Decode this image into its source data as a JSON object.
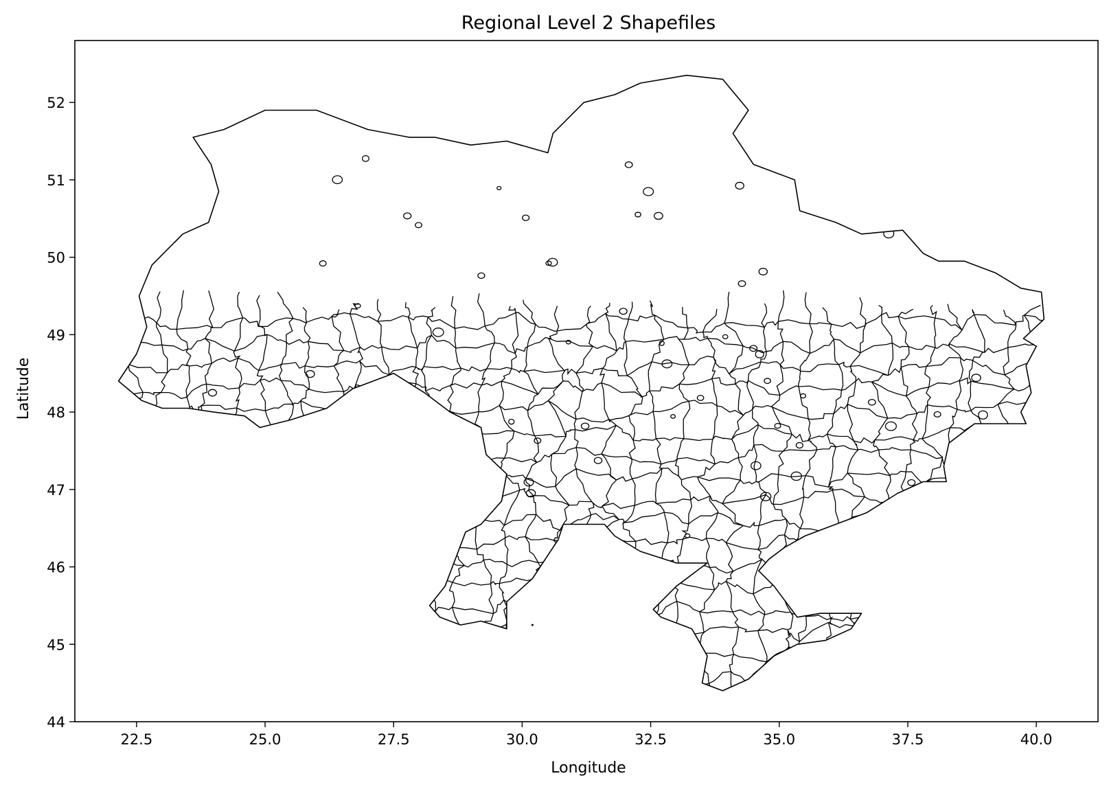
{
  "chart_data": {
    "type": "map",
    "title": "Regional Level 2 Shapefiles",
    "xlabel": "Longitude",
    "ylabel": "Latitude",
    "xlim": [
      21.3,
      41.2
    ],
    "ylim": [
      44.0,
      52.8
    ],
    "xticks": [
      "22.5",
      "25.0",
      "27.5",
      "30.0",
      "32.5",
      "35.0",
      "37.5",
      "40.0"
    ],
    "xtick_values": [
      22.5,
      25.0,
      27.5,
      30.0,
      32.5,
      35.0,
      37.5,
      40.0
    ],
    "yticks": [
      "44",
      "45",
      "46",
      "47",
      "48",
      "49",
      "50",
      "51",
      "52"
    ],
    "ytick_values": [
      44,
      45,
      46,
      47,
      48,
      49,
      50,
      51,
      52
    ],
    "grid": false,
    "legend": "none",
    "stroke_color": "#000000",
    "fill_color": "#ffffff",
    "outline": [
      [
        22.15,
        48.4
      ],
      [
        22.5,
        48.75
      ],
      [
        22.7,
        49.1
      ],
      [
        22.55,
        49.5
      ],
      [
        22.8,
        49.9
      ],
      [
        23.4,
        50.3
      ],
      [
        23.9,
        50.45
      ],
      [
        24.1,
        50.85
      ],
      [
        23.95,
        51.2
      ],
      [
        23.6,
        51.55
      ],
      [
        24.2,
        51.65
      ],
      [
        25.0,
        51.9
      ],
      [
        26.0,
        51.9
      ],
      [
        27.0,
        51.65
      ],
      [
        27.8,
        51.55
      ],
      [
        28.3,
        51.55
      ],
      [
        29.0,
        51.45
      ],
      [
        29.7,
        51.5
      ],
      [
        30.5,
        51.35
      ],
      [
        30.6,
        51.6
      ],
      [
        31.2,
        52.0
      ],
      [
        31.8,
        52.1
      ],
      [
        32.3,
        52.25
      ],
      [
        33.2,
        52.35
      ],
      [
        33.9,
        52.3
      ],
      [
        34.4,
        51.9
      ],
      [
        34.1,
        51.6
      ],
      [
        34.5,
        51.2
      ],
      [
        35.3,
        51.0
      ],
      [
        35.4,
        50.6
      ],
      [
        36.1,
        50.45
      ],
      [
        36.6,
        50.3
      ],
      [
        37.4,
        50.35
      ],
      [
        37.8,
        50.05
      ],
      [
        38.1,
        49.95
      ],
      [
        38.6,
        49.95
      ],
      [
        39.2,
        49.8
      ],
      [
        39.7,
        49.6
      ],
      [
        40.1,
        49.55
      ],
      [
        40.15,
        49.2
      ],
      [
        39.75,
        48.95
      ],
      [
        40.0,
        48.85
      ],
      [
        39.8,
        48.6
      ],
      [
        39.9,
        48.25
      ],
      [
        39.7,
        48.0
      ],
      [
        39.8,
        47.85
      ],
      [
        39.2,
        47.85
      ],
      [
        38.8,
        47.85
      ],
      [
        38.3,
        47.6
      ],
      [
        38.2,
        47.3
      ],
      [
        38.25,
        47.1
      ],
      [
        37.8,
        47.1
      ],
      [
        37.3,
        46.95
      ],
      [
        36.7,
        46.7
      ],
      [
        36.1,
        46.55
      ],
      [
        35.5,
        46.4
      ],
      [
        35.1,
        46.25
      ],
      [
        34.8,
        46.1
      ],
      [
        34.6,
        45.95
      ],
      [
        34.9,
        45.75
      ],
      [
        35.35,
        45.35
      ],
      [
        35.8,
        45.4
      ],
      [
        36.6,
        45.4
      ],
      [
        36.4,
        45.2
      ],
      [
        35.9,
        45.05
      ],
      [
        35.35,
        45.0
      ],
      [
        34.9,
        44.85
      ],
      [
        34.4,
        44.55
      ],
      [
        33.9,
        44.4
      ],
      [
        33.5,
        44.5
      ],
      [
        33.6,
        44.85
      ],
      [
        33.3,
        45.2
      ],
      [
        32.7,
        45.35
      ],
      [
        32.55,
        45.45
      ],
      [
        33.0,
        45.75
      ],
      [
        33.6,
        46.05
      ],
      [
        33.0,
        46.05
      ],
      [
        32.3,
        46.2
      ],
      [
        31.8,
        46.4
      ],
      [
        31.6,
        46.55
      ],
      [
        30.8,
        46.55
      ],
      [
        30.7,
        46.35
      ],
      [
        30.2,
        45.85
      ],
      [
        29.7,
        45.55
      ],
      [
        29.7,
        45.2
      ],
      [
        29.2,
        45.3
      ],
      [
        28.8,
        45.25
      ],
      [
        28.4,
        45.35
      ],
      [
        28.2,
        45.5
      ],
      [
        28.5,
        45.75
      ],
      [
        28.7,
        46.1
      ],
      [
        28.9,
        46.45
      ],
      [
        29.2,
        46.55
      ],
      [
        29.6,
        46.85
      ],
      [
        29.7,
        47.2
      ],
      [
        29.3,
        47.45
      ],
      [
        29.2,
        47.8
      ],
      [
        28.6,
        48.0
      ],
      [
        28.1,
        48.25
      ],
      [
        27.5,
        48.5
      ],
      [
        26.7,
        48.3
      ],
      [
        26.2,
        48.05
      ],
      [
        25.5,
        47.9
      ],
      [
        24.9,
        47.8
      ],
      [
        24.6,
        47.95
      ],
      [
        24.0,
        48.0
      ],
      [
        23.5,
        48.05
      ],
      [
        23.0,
        48.05
      ],
      [
        22.6,
        48.15
      ],
      [
        22.15,
        48.4
      ]
    ],
    "annotations": []
  }
}
